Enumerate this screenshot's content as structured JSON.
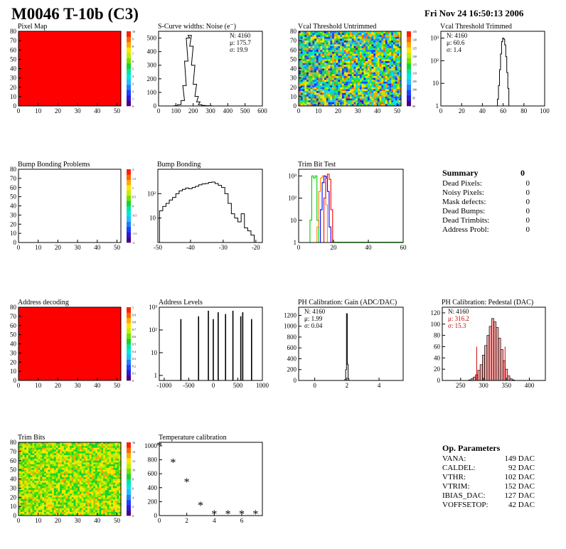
{
  "header": {
    "title": "M0046 T-10b (C3)",
    "timestamp": "Fri Nov 24 16:50:13 2006"
  },
  "palette": {
    "map_fill": "#ff0000",
    "bump_fill": "#ffffff",
    "line": "#000000",
    "trim_green": "#00cc00",
    "trim_orange": "#ff8800",
    "trim_blue": "#0000ff",
    "trim_red": "#ff0000",
    "pedestal_fill": "#ff0000",
    "pedestal_stat": "#cc0000",
    "colz": [
      "#4b0082",
      "#2a1bd6",
      "#1e40ff",
      "#1f7fff",
      "#1fbfff",
      "#00e5e5",
      "#00e5a0",
      "#19d32c",
      "#6fe300",
      "#c0ef00",
      "#ffe600",
      "#ffaa00",
      "#ff6600",
      "#ff2000"
    ]
  },
  "summary": {
    "title": "Summary",
    "total": "0",
    "rows": [
      {
        "label": "Dead Pixels:",
        "value": "0"
      },
      {
        "label": "Noisy Pixels:",
        "value": "0"
      },
      {
        "label": "Mask defects:",
        "value": "0"
      },
      {
        "label": "Dead Bumps:",
        "value": "0"
      },
      {
        "label": "Dead Trimbits:",
        "value": "0"
      },
      {
        "label": "Address Probl:",
        "value": "0"
      }
    ]
  },
  "op_parameters": {
    "title": "Op. Parameters",
    "rows": [
      {
        "label": "VANA:",
        "value": "149 DAC"
      },
      {
        "label": "CALDEL:",
        "value": "92 DAC"
      },
      {
        "label": "VTHR:",
        "value": "102 DAC"
      },
      {
        "label": "VTRIM:",
        "value": "152 DAC"
      },
      {
        "label": "IBIAS_DAC:",
        "value": "127 DAC"
      },
      {
        "label": "VOFFSETOP:",
        "value": "42 DAC"
      }
    ]
  },
  "chart_data": [
    {
      "id": "pixel-map",
      "type": "heatmap",
      "title": "Pixel Map",
      "xlim": [
        0,
        52
      ],
      "ylim": [
        0,
        80
      ],
      "xticks": [
        0,
        10,
        20,
        30,
        40,
        50
      ],
      "yticks": [
        0,
        10,
        20,
        30,
        40,
        50,
        60,
        70,
        80
      ],
      "fill": "uniform",
      "value": 10,
      "zlim": [
        0,
        10
      ],
      "zticks": [
        "0",
        "1",
        "2",
        "3",
        "4",
        "5",
        "6",
        "7",
        "8",
        "9",
        "10"
      ]
    },
    {
      "id": "scurve-noise",
      "type": "histogram",
      "title": "S-Curve widths: Noise (e⁻)",
      "xlim": [
        0,
        600
      ],
      "ylim": [
        0,
        550
      ],
      "xticks": [
        0,
        100,
        200,
        300,
        400,
        500,
        600
      ],
      "yticks": [
        0,
        100,
        200,
        300,
        400,
        500
      ],
      "x": [
        100,
        120,
        140,
        150,
        160,
        170,
        180,
        190,
        200,
        210,
        220,
        230,
        240,
        260,
        280,
        300
      ],
      "y": [
        2,
        10,
        40,
        150,
        330,
        500,
        520,
        440,
        300,
        160,
        70,
        30,
        10,
        4,
        2,
        1
      ],
      "stats": {
        "N": "4160",
        "mean": "175.7",
        "sigma": "19.9"
      }
    },
    {
      "id": "vcal-untrimmed",
      "type": "heatmap",
      "title": "Vcal Threshold Untrimmed",
      "xlim": [
        0,
        52
      ],
      "ylim": [
        0,
        80
      ],
      "xticks": [
        0,
        10,
        20,
        30,
        40,
        50
      ],
      "yticks": [
        0,
        10,
        20,
        30,
        40,
        50,
        60,
        70,
        80
      ],
      "fill": "noise",
      "value_range": [
        95,
        130
      ],
      "zlim": [
        90,
        135
      ],
      "zticks": [
        "90",
        "95",
        "100",
        "105",
        "110",
        "115",
        "120",
        "125",
        "130",
        "135"
      ]
    },
    {
      "id": "vcal-trimmed",
      "type": "histogram",
      "title": "Vcal Threshold Trimmed",
      "log": true,
      "xlim": [
        0,
        100
      ],
      "ylim": [
        1,
        2000
      ],
      "xticks": [
        0,
        20,
        40,
        60,
        80,
        100
      ],
      "yticks": [
        "1",
        "10",
        "10²",
        "10³"
      ],
      "x": [
        55,
        56,
        57,
        58,
        59,
        60,
        61,
        62,
        63,
        64,
        65,
        66
      ],
      "y": [
        2,
        8,
        40,
        200,
        700,
        1000,
        900,
        500,
        150,
        30,
        6,
        1
      ],
      "stats": {
        "N": "4160",
        "mean": "60.6",
        "sigma": "1.4"
      }
    },
    {
      "id": "bump-problems",
      "type": "heatmap",
      "title": "Bump Bonding Problems",
      "xlim": [
        0,
        52
      ],
      "ylim": [
        0,
        80
      ],
      "xticks": [
        0,
        10,
        20,
        30,
        40,
        50
      ],
      "yticks": [
        0,
        10,
        20,
        30,
        40,
        50,
        60,
        70,
        80
      ],
      "fill": "empty",
      "zlim": [
        -2,
        2
      ],
      "zticks": [
        "-2",
        "-1.5",
        "-1",
        "-0.5",
        "0",
        "0.5",
        "1",
        "1.5",
        "2"
      ]
    },
    {
      "id": "bump-bonding",
      "type": "histogram",
      "title": "Bump Bonding",
      "log": true,
      "xlim": [
        -50,
        -18
      ],
      "ylim": [
        1,
        1000
      ],
      "xticks": [
        -50,
        -40,
        -30,
        -20
      ],
      "yticks": [
        "10",
        "10²"
      ],
      "x": [
        -49,
        -48,
        -47,
        -46,
        -45,
        -44,
        -43,
        -42,
        -41,
        -40,
        -39,
        -38,
        -37,
        -36,
        -35,
        -34,
        -33,
        -32,
        -31,
        -30,
        -29,
        -28,
        -27,
        -26,
        -25,
        -24,
        -23,
        -22,
        -21,
        -20
      ],
      "y": [
        20,
        30,
        40,
        55,
        70,
        100,
        130,
        150,
        170,
        160,
        180,
        200,
        230,
        250,
        260,
        290,
        300,
        260,
        220,
        180,
        100,
        40,
        15,
        10,
        7,
        15,
        4,
        3,
        2,
        1
      ]
    },
    {
      "id": "trim-bit-test",
      "type": "line",
      "title": "Trim Bit Test",
      "log": true,
      "xlim": [
        0,
        60
      ],
      "ylim": [
        1,
        2000
      ],
      "xticks": [
        0,
        20,
        40,
        60
      ],
      "yticks": [
        "1",
        "10",
        "10²",
        "10³"
      ],
      "series": [
        {
          "color": "#00cc00",
          "x": [
            7,
            8,
            9,
            10,
            11,
            12,
            13,
            14
          ],
          "y": [
            10,
            1000,
            800,
            1000,
            10,
            1,
            1,
            1
          ]
        },
        {
          "color": "#ff8800",
          "x": [
            11,
            12,
            13,
            14,
            15,
            16,
            17
          ],
          "y": [
            5,
            200,
            800,
            1000,
            500,
            50,
            1
          ]
        },
        {
          "color": "#0000ff",
          "x": [
            13,
            14,
            15,
            16,
            17,
            18
          ],
          "y": [
            30,
            500,
            1000,
            900,
            200,
            5
          ]
        },
        {
          "color": "#ff0000",
          "x": [
            15,
            16,
            17,
            18,
            19
          ],
          "y": [
            100,
            800,
            1200,
            700,
            30
          ]
        }
      ]
    },
    {
      "id": "address-decoding",
      "type": "heatmap",
      "title": "Address decoding",
      "xlim": [
        0,
        52
      ],
      "ylim": [
        0,
        80
      ],
      "xticks": [
        0,
        10,
        20,
        30,
        40,
        50
      ],
      "yticks": [
        0,
        10,
        20,
        30,
        40,
        50,
        60,
        70,
        80
      ],
      "fill": "uniform",
      "value": 1,
      "zlim": [
        0,
        1
      ],
      "zticks": [
        "0",
        "0.1",
        "0.2",
        "0.3",
        "0.4",
        "0.5",
        "0.6",
        "0.7",
        "0.8",
        "0.9",
        "1"
      ]
    },
    {
      "id": "address-levels",
      "type": "histogram",
      "title": "Address Levels",
      "log": true,
      "xlim": [
        -1100,
        1000
      ],
      "ylim": [
        0.6,
        1000
      ],
      "xticks": [
        -1000,
        -500,
        0,
        500,
        1000
      ],
      "yticks": [
        "1",
        "10",
        "10²",
        "10³"
      ],
      "x": [
        -660,
        -300,
        -100,
        0,
        100,
        250,
        400,
        560,
        600,
        780
      ],
      "y": [
        300,
        400,
        700,
        300,
        600,
        500,
        700,
        400,
        600,
        300
      ]
    },
    {
      "id": "ph-gain",
      "type": "histogram",
      "title": "PH Calibration: Gain (ADC/DAC)",
      "xlim": [
        -1,
        5.5
      ],
      "ylim": [
        0,
        1350
      ],
      "xticks": [
        0,
        2,
        4
      ],
      "yticks": [
        0,
        200,
        400,
        600,
        800,
        1000,
        1200
      ],
      "x": [
        1.9,
        1.95,
        2.0,
        2.05,
        2.1
      ],
      "y": [
        20,
        200,
        1230,
        300,
        30
      ],
      "stats": {
        "N": "4160",
        "mean": "1.99",
        "sigma": "0.04"
      }
    },
    {
      "id": "ph-pedestal",
      "type": "histogram",
      "title": "PH Calibration: Pedestal (DAC)",
      "xlim": [
        210,
        435
      ],
      "ylim": [
        0,
        130
      ],
      "xticks": [
        250,
        300,
        350,
        400
      ],
      "yticks": [
        0,
        20,
        40,
        60,
        80,
        100,
        120
      ],
      "x": [
        270,
        275,
        280,
        285,
        290,
        295,
        300,
        305,
        310,
        315,
        320,
        325,
        330,
        335,
        340,
        345,
        350,
        355,
        360,
        365
      ],
      "y": [
        1,
        3,
        6,
        10,
        18,
        28,
        45,
        62,
        80,
        96,
        110,
        104,
        94,
        75,
        55,
        35,
        20,
        8,
        3,
        1
      ],
      "cuts": [
        285,
        347
      ],
      "stats": {
        "N": "4160",
        "mean": "316.2",
        "sigma": "15.3"
      }
    },
    {
      "id": "trim-bits",
      "type": "heatmap",
      "title": "Trim Bits",
      "xlim": [
        0,
        52
      ],
      "ylim": [
        0,
        80
      ],
      "xticks": [
        0,
        10,
        20,
        30,
        40,
        50
      ],
      "yticks": [
        0,
        10,
        20,
        30,
        40,
        50,
        60,
        70,
        80
      ],
      "fill": "noise",
      "value_range": [
        8,
        13
      ],
      "zlim": [
        0,
        16
      ],
      "zticks": [
        "0",
        "2",
        "4",
        "6",
        "8",
        "10",
        "12",
        "14",
        "16"
      ]
    },
    {
      "id": "temperature-calibration",
      "type": "scatter",
      "title": "Temperature calibration",
      "xlim": [
        0,
        7.5
      ],
      "ylim": [
        0,
        1050
      ],
      "xticks": [
        0,
        2,
        4,
        6
      ],
      "yticks": [
        0,
        200,
        400,
        600,
        800,
        1000
      ],
      "x": [
        0,
        1,
        2,
        3,
        4,
        5,
        6,
        7
      ],
      "y": [
        990,
        750,
        470,
        130,
        10,
        10,
        10,
        10
      ]
    }
  ]
}
